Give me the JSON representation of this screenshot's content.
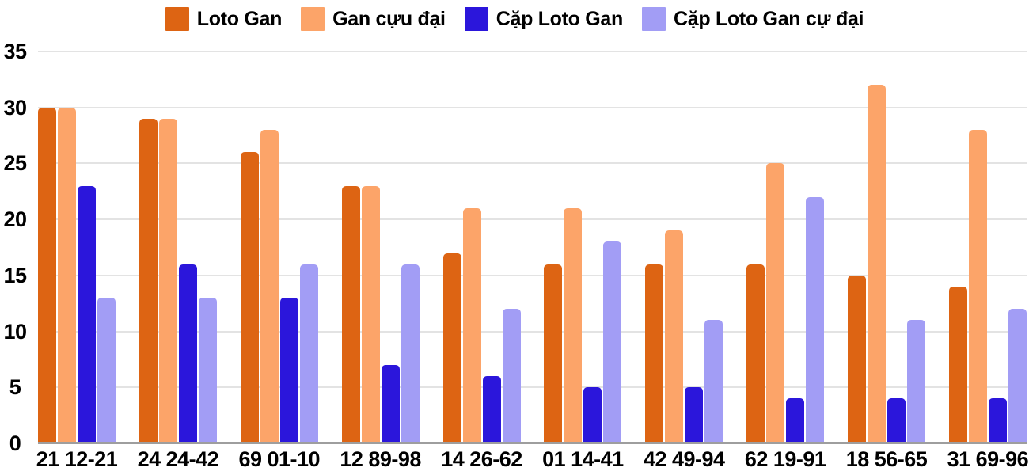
{
  "chart_data": {
    "type": "bar",
    "title": "",
    "xlabel": "",
    "ylabel": "",
    "categories": [
      "21 12-21",
      "24 24-42",
      "69 01-10",
      "12 89-98",
      "14 26-62",
      "01 14-41",
      "42 49-94",
      "62 19-91",
      "18 56-65",
      "31 69-96"
    ],
    "series": [
      {
        "name": "Loto Gan",
        "color": "#dd6413",
        "values": [
          30,
          29,
          26,
          23,
          17,
          16,
          16,
          16,
          15,
          14
        ]
      },
      {
        "name": "Gan cựu đại",
        "color": "#fca469",
        "values": [
          30,
          29,
          28,
          23,
          21,
          21,
          19,
          25,
          32,
          28
        ]
      },
      {
        "name": "Cặp Loto Gan",
        "color": "#2b16db",
        "values": [
          23,
          16,
          13,
          7,
          6,
          5,
          5,
          4,
          4,
          4
        ]
      },
      {
        "name": "Cặp Loto Gan cự đại",
        "color": "#a29df5",
        "values": [
          13,
          13,
          16,
          16,
          12,
          18,
          11,
          22,
          11,
          12
        ]
      }
    ],
    "ylim": [
      0,
      35
    ],
    "yticks": [
      0,
      5,
      10,
      15,
      20,
      25,
      30,
      35
    ],
    "grid": "horizontal",
    "gridline_color": "#e3e3e3",
    "zero_line_color": "#9e9e9e",
    "legend_position": "top",
    "text_color": "#000000"
  }
}
